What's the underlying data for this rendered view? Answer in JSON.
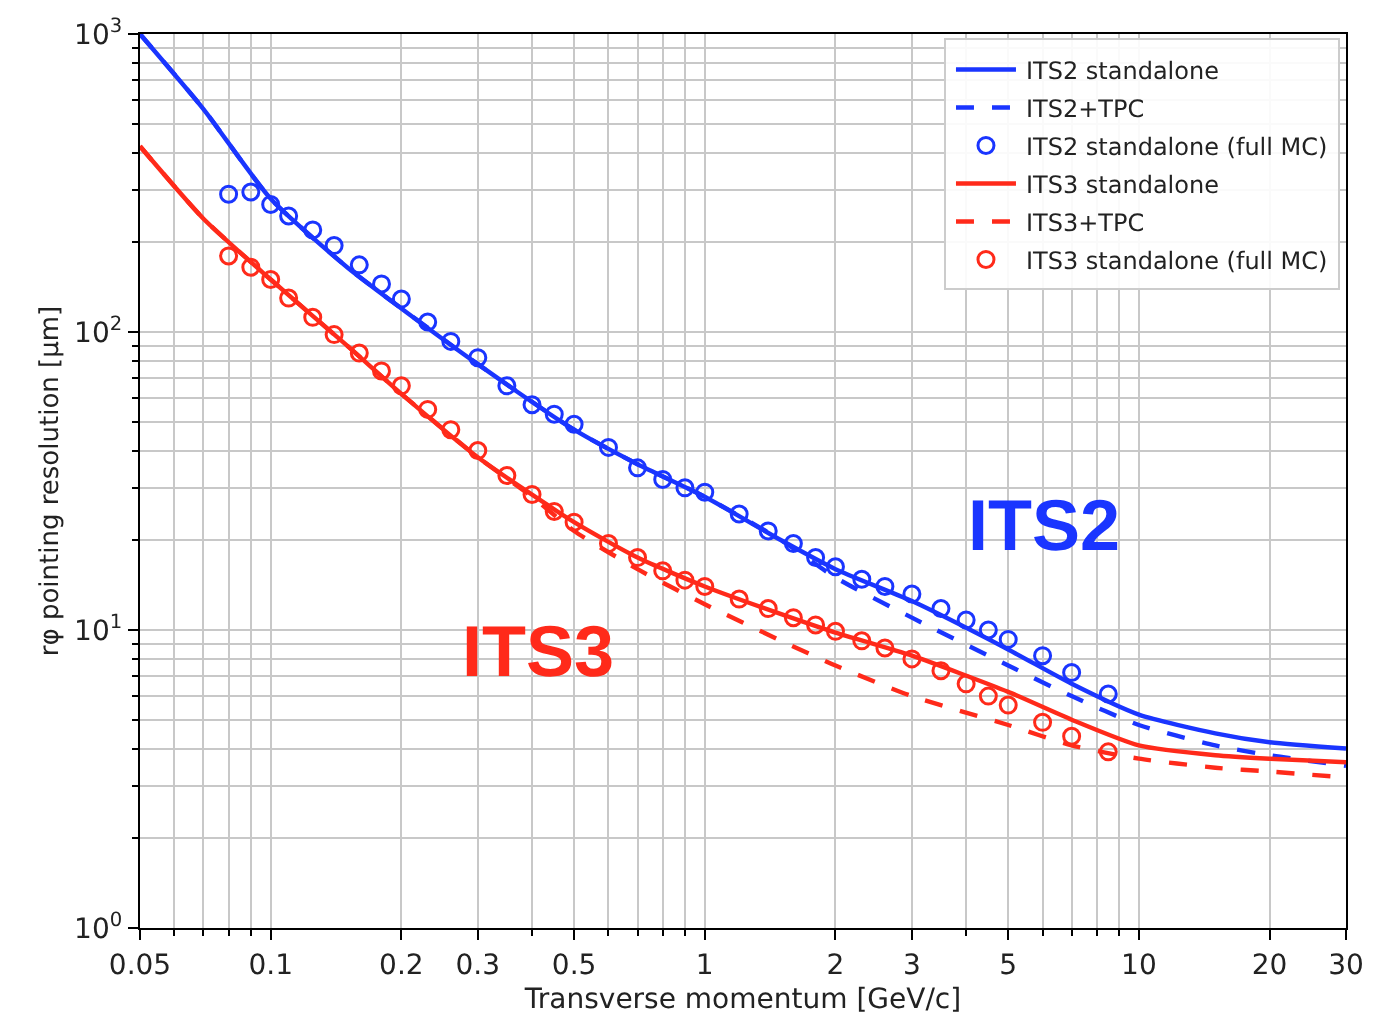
{
  "chart_data": {
    "type": "line",
    "xlabel": "Transverse momentum [GeV/c]",
    "ylabel": "rφ pointing resolution [μm]",
    "log": "xy",
    "grid": true,
    "legend": "top right",
    "xlim": [
      0.05,
      30
    ],
    "xticks": [
      0.05,
      0.1,
      0.2,
      0.3,
      0.5,
      1,
      2,
      3,
      5,
      10,
      20,
      30
    ],
    "ylim": [
      1,
      1000
    ],
    "yticks": [
      {
        "value": 1,
        "label": "10$^{0}$"
      },
      {
        "value": 10,
        "label": "10$^{1}$"
      },
      {
        "value": 100,
        "label": "10$^{2}$"
      },
      {
        "value": 1000,
        "label": "10$^{3}$"
      }
    ],
    "series": [
      {
        "name": "ITS2 standalone",
        "line_style": "solid",
        "color": "#1a35ff",
        "x": [
          0.05,
          0.07,
          0.1,
          0.15,
          0.2,
          0.3,
          0.5,
          0.7,
          1,
          1.5,
          2,
          3,
          5,
          7,
          10,
          15,
          20,
          30
        ],
        "values": [
          1000,
          560,
          280,
          165,
          120,
          78,
          47,
          36,
          28,
          20,
          16,
          12.5,
          8.6,
          6.6,
          5.2,
          4.5,
          4.2,
          4.0
        ]
      },
      {
        "name": "ITS2+TPC",
        "line_style": "dashed",
        "color": "#1a35ff",
        "x": [
          0.05,
          0.07,
          0.1,
          0.15,
          0.2,
          0.3,
          0.5,
          0.7,
          1,
          1.5,
          2,
          3,
          5,
          7,
          10,
          15,
          20,
          30
        ],
        "values": [
          1000,
          560,
          280,
          165,
          120,
          78,
          47,
          36,
          28,
          20,
          15,
          11,
          7.6,
          6.0,
          4.8,
          4.1,
          3.8,
          3.5
        ]
      },
      {
        "name": "ITS2 standalone (full MC)",
        "type": "scatter",
        "marker": "circle",
        "color": "#1a35ff",
        "x": [
          0.08,
          0.09,
          0.1,
          0.11,
          0.125,
          0.14,
          0.16,
          0.18,
          0.2,
          0.23,
          0.26,
          0.3,
          0.35,
          0.4,
          0.45,
          0.5,
          0.6,
          0.7,
          0.8,
          0.9,
          1,
          1.2,
          1.4,
          1.6,
          1.8,
          2,
          2.3,
          2.6,
          3,
          3.5,
          4,
          4.5,
          5,
          6,
          7,
          8.5
        ],
        "values": [
          290,
          295,
          268,
          245,
          220,
          195,
          168,
          145,
          129,
          108,
          93,
          82,
          66,
          57,
          53,
          49,
          41,
          35,
          32,
          30,
          29,
          24.5,
          21.5,
          19.5,
          17.5,
          16.3,
          14.8,
          14,
          13.2,
          11.8,
          10.8,
          10,
          9.3,
          8.2,
          7.2,
          6.1
        ]
      },
      {
        "name": "ITS3 standalone",
        "line_style": "solid",
        "color": "#ff2a1a",
        "x": [
          0.05,
          0.07,
          0.1,
          0.15,
          0.2,
          0.3,
          0.5,
          0.7,
          1,
          1.5,
          2,
          3,
          5,
          7,
          10,
          15,
          20,
          30
        ],
        "values": [
          420,
          240,
          150,
          90,
          62,
          38,
          23,
          17.5,
          14,
          11.3,
          9.8,
          8.2,
          6.2,
          5.0,
          4.1,
          3.8,
          3.7,
          3.6
        ]
      },
      {
        "name": "ITS3+TPC",
        "line_style": "dashed",
        "color": "#ff2a1a",
        "x": [
          0.05,
          0.07,
          0.1,
          0.15,
          0.2,
          0.3,
          0.4,
          0.5,
          0.7,
          1,
          1.5,
          2,
          3,
          5,
          7,
          10,
          15,
          20,
          30
        ],
        "values": [
          420,
          240,
          150,
          90,
          62,
          38,
          28,
          21.5,
          16,
          12.2,
          9.2,
          7.6,
          6.0,
          4.8,
          4.1,
          3.7,
          3.45,
          3.35,
          3.2
        ]
      },
      {
        "name": "ITS3 standalone (full MC)",
        "type": "scatter",
        "marker": "circle",
        "color": "#ff2a1a",
        "x": [
          0.08,
          0.09,
          0.1,
          0.11,
          0.125,
          0.14,
          0.16,
          0.18,
          0.2,
          0.23,
          0.26,
          0.3,
          0.35,
          0.4,
          0.45,
          0.5,
          0.6,
          0.7,
          0.8,
          0.9,
          1,
          1.2,
          1.4,
          1.6,
          1.8,
          2,
          2.3,
          2.6,
          3,
          3.5,
          4,
          4.5,
          5,
          6,
          7,
          8.5
        ],
        "values": [
          180,
          165,
          150,
          130,
          112,
          98,
          85,
          74,
          66,
          55,
          47,
          40,
          33,
          28.5,
          25,
          23,
          19.5,
          17.5,
          15.8,
          14.7,
          14,
          12.7,
          11.8,
          11,
          10.4,
          9.9,
          9.2,
          8.7,
          8.0,
          7.3,
          6.6,
          6.0,
          5.6,
          4.9,
          4.4,
          3.9
        ]
      }
    ],
    "annotations": [
      "ITS2",
      "ITS3"
    ]
  }
}
